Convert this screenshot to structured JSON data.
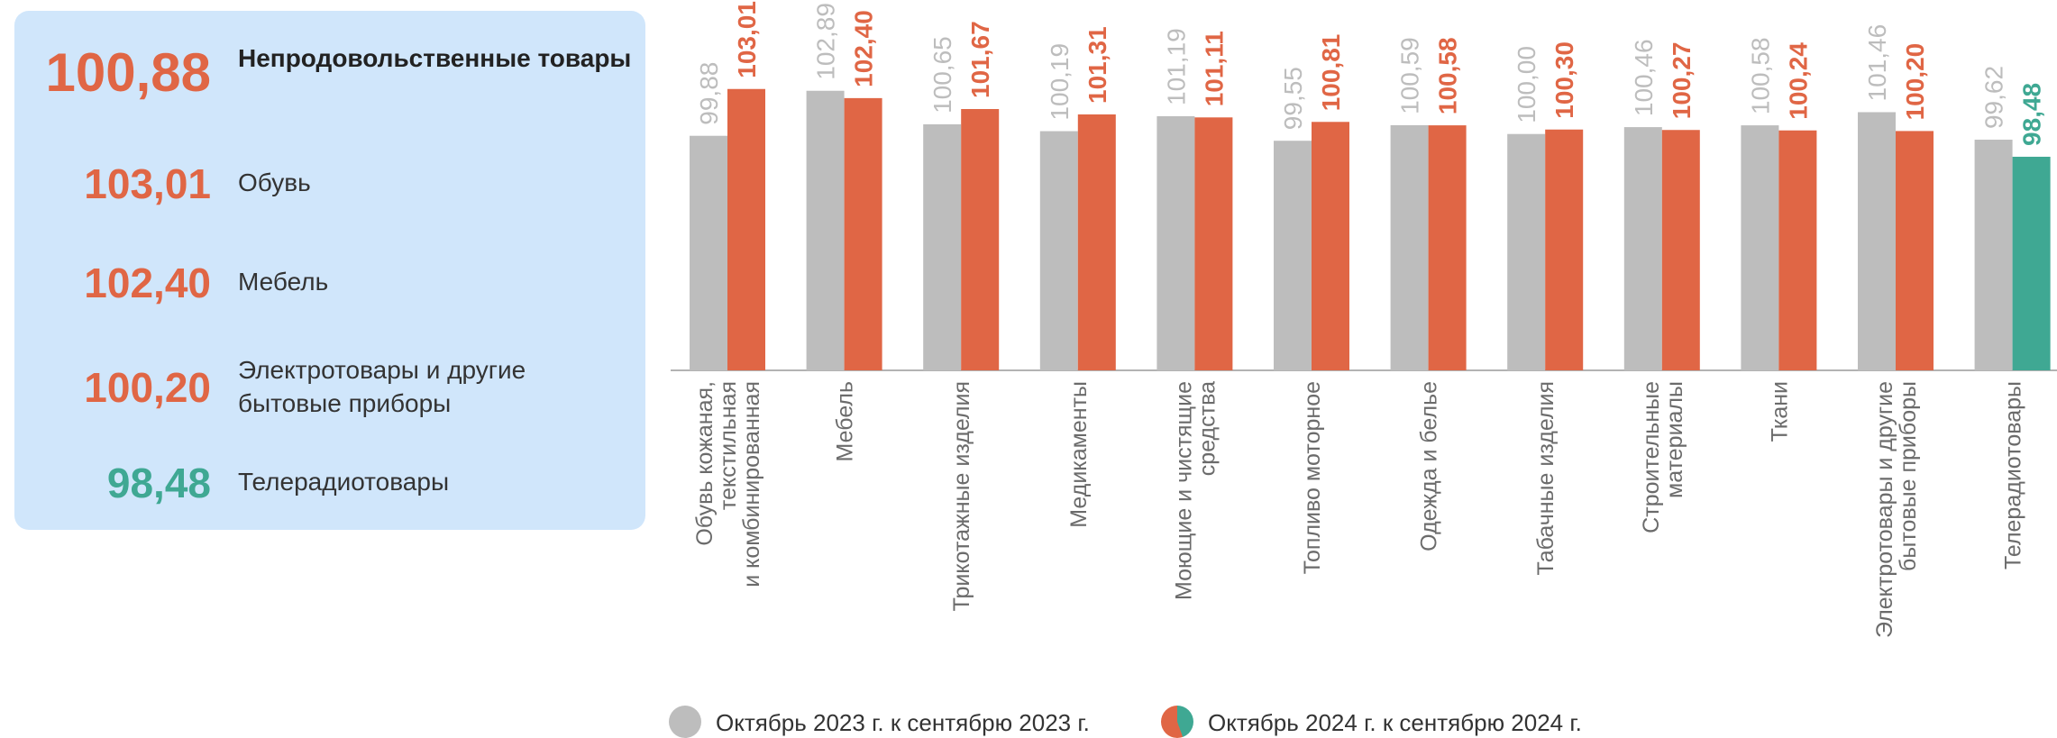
{
  "summary": {
    "items": [
      {
        "value": "100,88",
        "label": "Непродовольственные товары",
        "color": "#e06645",
        "bold": true
      },
      {
        "value": "103,01",
        "label": "Обувь",
        "color": "#e06645",
        "bold": false
      },
      {
        "value": "102,40",
        "label": "Мебель",
        "color": "#e06645",
        "bold": false
      },
      {
        "value": "100,20",
        "label": "Электротовары и другие бытовые приборы",
        "color": "#e06645",
        "bold": false
      },
      {
        "value": "98,48",
        "label": "Телерадиотовары",
        "color": "#3fa893",
        "bold": false
      }
    ]
  },
  "chart_data": {
    "type": "bar",
    "categories": [
      [
        "Обувь кожаная,",
        "текстильная",
        "и комбинированная"
      ],
      [
        "Мебель"
      ],
      [
        "Трикотажные изделия"
      ],
      [
        "Медикаменты"
      ],
      [
        "Моющие и чистящие",
        "средства"
      ],
      [
        "Топливо моторное"
      ],
      [
        "Одежда и белье"
      ],
      [
        "Табачные изделия"
      ],
      [
        "Строительные",
        "материалы"
      ],
      [
        "Ткани"
      ],
      [
        "Электротовары и другие",
        "бытовые приборы"
      ],
      [
        "Телерадиотовары"
      ]
    ],
    "series": [
      {
        "name": "Октябрь 2023 г. к сентябрю 2023 г.",
        "values": [
          99.88,
          102.89,
          100.65,
          100.19,
          101.19,
          99.55,
          100.59,
          100.0,
          100.46,
          100.58,
          101.46,
          99.62
        ],
        "labels": [
          "99,88",
          "102,89",
          "100,65",
          "100,19",
          "101,19",
          "99,55",
          "100,59",
          "100,00",
          "100,46",
          "100,58",
          "101,46",
          "99,62"
        ],
        "color": "#bdbdbd"
      },
      {
        "name": "Октябрь 2024 г. к сентябрю 2024 г.",
        "values": [
          103.01,
          102.4,
          101.67,
          101.31,
          101.11,
          100.81,
          100.58,
          100.3,
          100.27,
          100.24,
          100.2,
          98.48
        ],
        "labels": [
          "103,01",
          "102,40",
          "101,67",
          "101,31",
          "101,11",
          "100,81",
          "100,58",
          "100,30",
          "100,27",
          "100,24",
          "100,20",
          "98,48"
        ],
        "color": "#e06645",
        "below_100_color": "#3fa893"
      }
    ],
    "baseline": 84.2,
    "grid": false,
    "legend_position": "bottom"
  },
  "legend": [
    {
      "label": "Октябрь 2023 г. к сентябрю 2023 г.",
      "icon": "gray-circle-icon",
      "color": "#bdbdbd"
    },
    {
      "label": "Октябрь 2024 г. к сентябрю 2024 г.",
      "icon": "orange-green-circle-icon",
      "colors": [
        "#e06645",
        "#3fa893"
      ]
    }
  ]
}
